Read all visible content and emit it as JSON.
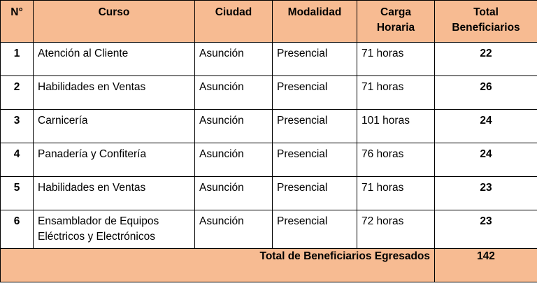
{
  "table": {
    "headers": {
      "num": "N°",
      "course": "Curso",
      "city": "Ciudad",
      "mode": "Modalidad",
      "hours_line1": "Carga",
      "hours_line2": "Horaria",
      "total_line1": "Total",
      "total_line2": "Beneficiarios"
    },
    "rows": [
      {
        "num": "1",
        "course": "Atención al Cliente",
        "city": "Asunción",
        "mode": "Presencial",
        "hours": "71 horas",
        "total": "22"
      },
      {
        "num": "2",
        "course": "Habilidades en Ventas",
        "city": "Asunción",
        "mode": "Presencial",
        "hours": "71 horas",
        "total": "26"
      },
      {
        "num": "3",
        "course": "Carnicería",
        "city": "Asunción",
        "mode": "Presencial",
        "hours": "101 horas",
        "total": "24"
      },
      {
        "num": "4",
        "course": "Panadería y Confitería",
        "city": "Asunción",
        "mode": "Presencial",
        "hours": "76 horas",
        "total": "24"
      },
      {
        "num": "5",
        "course": "Habilidades en Ventas",
        "city": "Asunción",
        "mode": "Presencial",
        "hours": "71 horas",
        "total": "23"
      },
      {
        "num": "6",
        "course": "Ensamblador de Equipos Eléctricos y Electrónicos",
        "city": "Asunción",
        "mode": "Presencial",
        "hours": "72 horas",
        "total": "23"
      }
    ],
    "footer": {
      "label": "Total de Beneficiarios Egresados",
      "total": "142"
    },
    "colors": {
      "header_bg": "#f7bb92",
      "footer_bg": "#f7bb92",
      "border": "#000000"
    }
  }
}
